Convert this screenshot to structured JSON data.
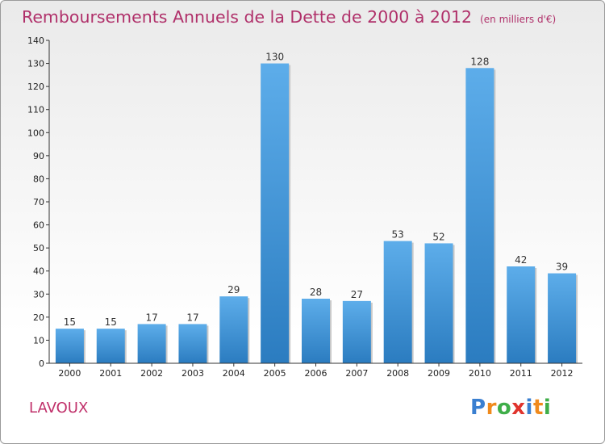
{
  "title": "Remboursements Annuels de la Dette de 2000 à 2012",
  "unit_note": "(en milliers d'€)",
  "commune": "LAVOUX",
  "logo": {
    "letters": [
      "P",
      "r",
      "o",
      "x",
      "i",
      "t",
      "i"
    ],
    "colors": [
      "#3a7fd0",
      "#f08a1c",
      "#3fae49",
      "#e0342d",
      "#3a7fd0",
      "#f08a1c",
      "#3fae49"
    ]
  },
  "colors": {
    "title": "#b0306a",
    "bar_light": "#5dadea",
    "bar_dark": "#2b7cc0",
    "axis": "#333333"
  },
  "chart_data": {
    "type": "bar",
    "categories": [
      "2000",
      "2001",
      "2002",
      "2003",
      "2004",
      "2005",
      "2006",
      "2007",
      "2008",
      "2009",
      "2010",
      "2011",
      "2012"
    ],
    "values": [
      15,
      15,
      17,
      17,
      29,
      130,
      28,
      27,
      53,
      52,
      128,
      42,
      39
    ],
    "ylim": [
      0,
      140
    ],
    "yticks": [
      0,
      10,
      20,
      30,
      40,
      50,
      60,
      70,
      80,
      90,
      100,
      110,
      120,
      130,
      140
    ],
    "xlabel": "",
    "ylabel": "",
    "data_labels": true,
    "grid": false
  }
}
